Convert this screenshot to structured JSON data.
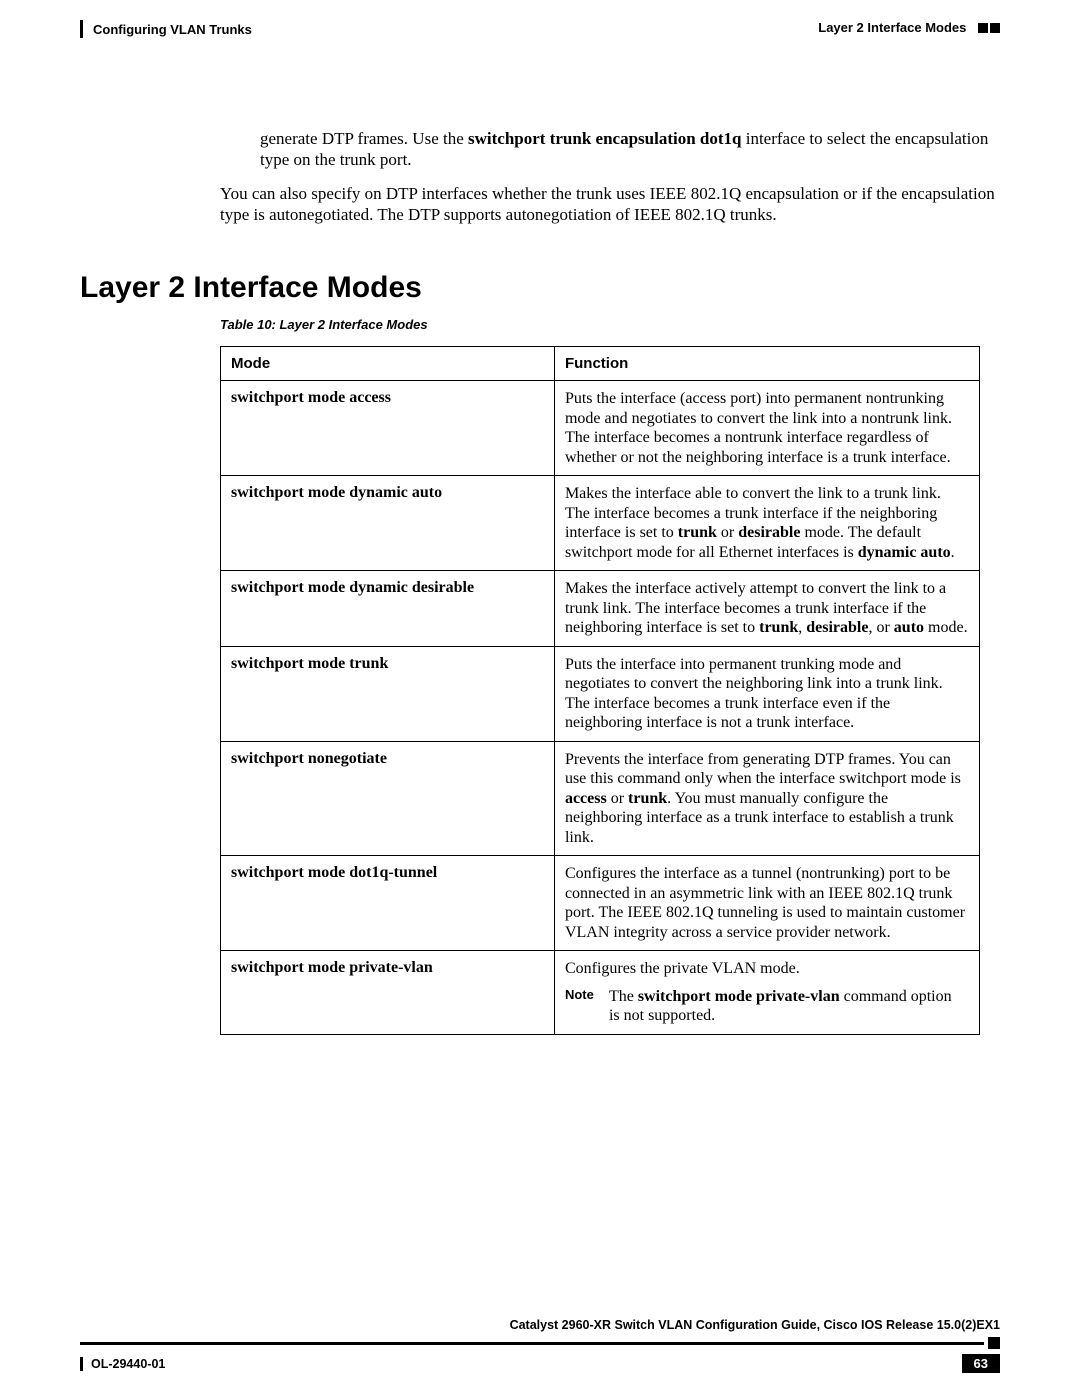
{
  "header": {
    "left": "Configuring VLAN Trunks",
    "right": "Layer 2 Interface Modes"
  },
  "intro": {
    "p1_pre": "generate DTP frames. Use the",
    "p1_bold": "switchport trunk encapsulation dot1q",
    "p1_post": " interface to select the encapsulation type on the trunk port.",
    "p2": "You can also specify on DTP interfaces whether the trunk uses IEEE 802.1Q encapsulation or if the encapsulation type is autonegotiated. The DTP supports autonegotiation of IEEE 802.1Q trunks."
  },
  "section": {
    "heading": "Layer 2 Interface Modes",
    "table_caption": "Table 10: Layer 2 Interface Modes"
  },
  "table": {
    "head_mode": "Mode",
    "head_func": "Function",
    "rows": [
      {
        "mode": "switchport mode access",
        "func_parts": [
          {
            "t": "Puts the interface (access port) into permanent nontrunking mode and negotiates to convert the link into a nontrunk link. The interface becomes a nontrunk interface regardless of whether or not the neighboring interface is a trunk interface."
          }
        ]
      },
      {
        "mode": "switchport mode dynamic auto",
        "func_parts": [
          {
            "t": "Makes the interface able to convert the link to a trunk link. The interface becomes a trunk interface if the neighboring interface is set to "
          },
          {
            "t": "trunk",
            "b": true
          },
          {
            "t": " or "
          },
          {
            "t": "desirable",
            "b": true
          },
          {
            "t": " mode. The default switchport mode for all Ethernet interfaces is "
          },
          {
            "t": "dynamic auto",
            "b": true
          },
          {
            "t": "."
          }
        ]
      },
      {
        "mode": "switchport mode dynamic desirable",
        "func_parts": [
          {
            "t": "Makes the interface actively attempt to convert the link to a trunk link. The interface becomes a trunk interface if the neighboring interface is set to "
          },
          {
            "t": "trunk",
            "b": true
          },
          {
            "t": ", "
          },
          {
            "t": "desirable",
            "b": true
          },
          {
            "t": ", or "
          },
          {
            "t": "auto",
            "b": true
          },
          {
            "t": " mode."
          }
        ]
      },
      {
        "mode": "switchport mode trunk",
        "func_parts": [
          {
            "t": "Puts the interface into permanent trunking mode and negotiates to convert the neighboring link into a trunk link. The interface becomes a trunk interface even if the neighboring interface is not a trunk interface."
          }
        ]
      },
      {
        "mode": "switchport nonegotiate",
        "func_parts": [
          {
            "t": "Prevents the interface from generating DTP frames. You can use this command only when the interface switchport mode is "
          },
          {
            "t": "access",
            "b": true
          },
          {
            "t": " or "
          },
          {
            "t": "trunk",
            "b": true
          },
          {
            "t": ". You must manually configure the neighboring interface as a trunk interface to establish a trunk link."
          }
        ]
      },
      {
        "mode": "switchport mode dot1q-tunnel",
        "func_parts": [
          {
            "t": "Configures the interface as a tunnel (nontrunking) port to be connected in an asymmetric link with an IEEE 802.1Q trunk port. The IEEE 802.1Q tunneling is used to maintain customer VLAN integrity across a service provider network."
          }
        ]
      },
      {
        "mode": "switchport mode private-vlan",
        "func_parts": [
          {
            "t": "Configures the private VLAN mode."
          }
        ],
        "note": {
          "label": "Note",
          "parts": [
            {
              "t": "The  "
            },
            {
              "t": "switchport mode private-vlan",
              "b": true
            },
            {
              "t": " command option is not supported."
            }
          ]
        }
      }
    ]
  },
  "footer": {
    "guide_title": "Catalyst 2960-XR Switch VLAN Configuration Guide, Cisco IOS Release 15.0(2)EX1",
    "doc_id": "OL-29440-01",
    "page_num": "63"
  },
  "style": {
    "colors": {
      "text": "#000000",
      "background": "#ffffff",
      "footer_badge_bg": "#000000",
      "footer_badge_fg": "#ffffff"
    },
    "fonts": {
      "serif": "Times New Roman",
      "sans": "Arial"
    }
  }
}
